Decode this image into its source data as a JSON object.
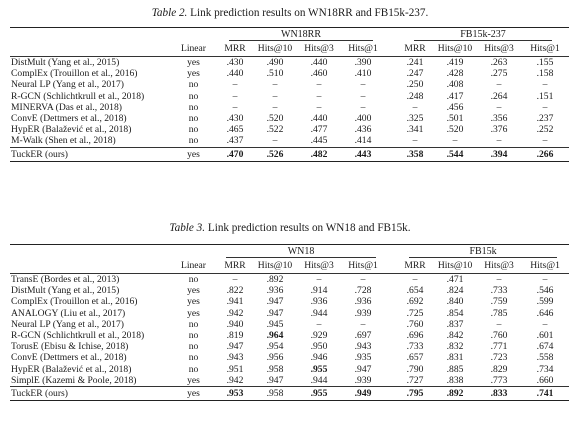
{
  "table2": {
    "caption_label": "Table 2.",
    "caption_text": " Link prediction results on WN18RR and FB15k-237.",
    "linear_header": "Linear",
    "groups": [
      "WN18RR",
      "FB15k-237"
    ],
    "metrics": [
      "MRR",
      "Hits@10",
      "Hits@3",
      "Hits@1"
    ],
    "rows": [
      {
        "name": "DistMult (Yang et al., 2015)",
        "linear": "yes",
        "values": [
          ".430",
          ".490",
          ".440",
          ".390",
          ".241",
          ".419",
          ".263",
          ".155"
        ]
      },
      {
        "name": "ComplEx (Trouillon et al., 2016)",
        "linear": "yes",
        "values": [
          ".440",
          ".510",
          ".460",
          ".410",
          ".247",
          ".428",
          ".275",
          ".158"
        ]
      },
      {
        "name": "Neural LP (Yang et al., 2017)",
        "linear": "no",
        "values": [
          "–",
          "–",
          "–",
          "–",
          ".250",
          ".408",
          "–",
          "–"
        ]
      },
      {
        "name": "R-GCN (Schlichtkrull et al., 2018)",
        "linear": "no",
        "values": [
          "–",
          "–",
          "–",
          "–",
          ".248",
          ".417",
          ".264",
          ".151"
        ]
      },
      {
        "name": "MINERVA (Das et al., 2018)",
        "linear": "no",
        "values": [
          "–",
          "–",
          "–",
          "–",
          "–",
          ".456",
          "–",
          "–"
        ]
      },
      {
        "name": "ConvE (Dettmers et al., 2018)",
        "linear": "no",
        "values": [
          ".430",
          ".520",
          ".440",
          ".400",
          ".325",
          ".501",
          ".356",
          ".237"
        ]
      },
      {
        "name": "HypER (Balažević et al., 2018)",
        "linear": "no",
        "values": [
          ".465",
          ".522",
          ".477",
          ".436",
          ".341",
          ".520",
          ".376",
          ".252"
        ]
      },
      {
        "name": "M-Walk (Shen et al., 2018)",
        "linear": "no",
        "values": [
          ".437",
          "–",
          ".445",
          ".414",
          "–",
          "–",
          "–",
          "–"
        ]
      }
    ],
    "ours": {
      "name": "TuckER (ours)",
      "linear": "yes",
      "values": [
        ".470",
        ".526",
        ".482",
        ".443",
        ".358",
        ".544",
        ".394",
        ".266"
      ]
    }
  },
  "table3": {
    "caption_label": "Table 3.",
    "caption_text": " Link prediction results on WN18 and FB15k.",
    "linear_header": "Linear",
    "groups": [
      "WN18",
      "FB15k"
    ],
    "metrics": [
      "MRR",
      "Hits@10",
      "Hits@3",
      "Hits@1"
    ],
    "rows": [
      {
        "name": "TransE (Bordes et al., 2013)",
        "linear": "no",
        "values": [
          "–",
          ".892",
          "–",
          "–",
          "–",
          ".471",
          "–",
          "–"
        ]
      },
      {
        "name": "DistMult (Yang et al., 2015)",
        "linear": "yes",
        "values": [
          ".822",
          ".936",
          ".914",
          ".728",
          ".654",
          ".824",
          ".733",
          ".546"
        ]
      },
      {
        "name": "ComplEx (Trouillon et al., 2016)",
        "linear": "yes",
        "values": [
          ".941",
          ".947",
          ".936",
          ".936",
          ".692",
          ".840",
          ".759",
          ".599"
        ]
      },
      {
        "name": "ANALOGY (Liu et al., 2017)",
        "linear": "yes",
        "values": [
          ".942",
          ".947",
          ".944",
          ".939",
          ".725",
          ".854",
          ".785",
          ".646"
        ]
      },
      {
        "name": "Neural LP (Yang et al., 2017)",
        "linear": "no",
        "values": [
          ".940",
          ".945",
          "–",
          "–",
          ".760",
          ".837",
          "–",
          "–"
        ]
      },
      {
        "name": "R-GCN (Schlichtkrull et al., 2018)",
        "linear": "no",
        "values": [
          ".819",
          ".964",
          ".929",
          ".697",
          ".696",
          ".842",
          ".760",
          ".601"
        ]
      },
      {
        "name": "TorusE (Ebisu & Ichise, 2018)",
        "linear": "no",
        "values": [
          ".947",
          ".954",
          ".950",
          ".943",
          ".733",
          ".832",
          ".771",
          ".674"
        ]
      },
      {
        "name": "ConvE (Dettmers et al., 2018)",
        "linear": "no",
        "values": [
          ".943",
          ".956",
          ".946",
          ".935",
          ".657",
          ".831",
          ".723",
          ".558"
        ]
      },
      {
        "name": "HypER (Balažević et al., 2018)",
        "linear": "no",
        "values": [
          ".951",
          ".958",
          ".955",
          ".947",
          ".790",
          ".885",
          ".829",
          ".734"
        ]
      },
      {
        "name": "SimplE (Kazemi & Poole, 2018)",
        "linear": "yes",
        "values": [
          ".942",
          ".947",
          ".944",
          ".939",
          ".727",
          ".838",
          ".773",
          ".660"
        ]
      }
    ],
    "ours": {
      "name": "TuckER (ours)",
      "linear": "yes",
      "values": [
        ".953",
        ".958",
        ".955",
        ".949",
        ".795",
        ".892",
        ".833",
        ".741"
      ]
    }
  }
}
